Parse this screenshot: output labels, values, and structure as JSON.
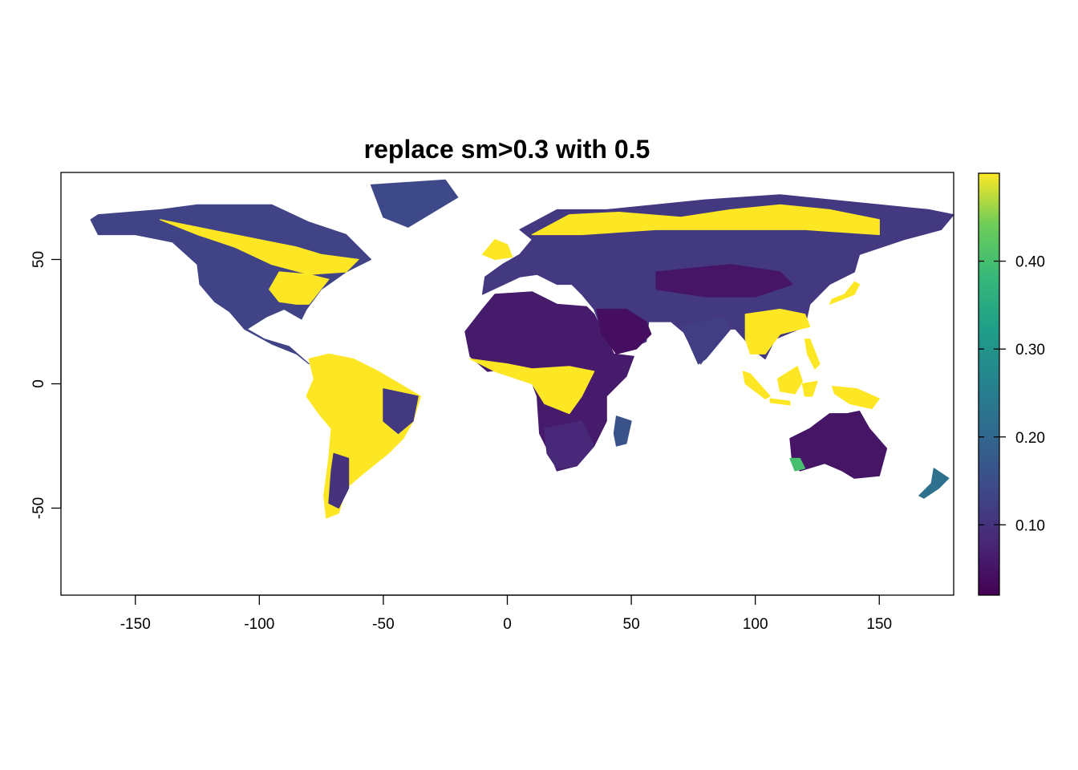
{
  "title": "replace sm>0.3 with 0.5",
  "colors": {
    "low": "#440154",
    "mid": "#21908c",
    "high": "#fde725",
    "land": "#3b1a6e",
    "frame": "#000000"
  },
  "chart_data": {
    "type": "heatmap",
    "title": "replace sm>0.3 with 0.5",
    "xlabel": "",
    "ylabel": "",
    "xlim": [
      -180,
      180
    ],
    "ylim": [
      -85,
      85
    ],
    "x_ticks": [
      -150,
      -100,
      -50,
      0,
      50,
      100,
      150
    ],
    "x_tick_labels": [
      "-150",
      "-100",
      "-50",
      "0",
      "50",
      "100",
      "150"
    ],
    "y_ticks": [
      50,
      0,
      -50
    ],
    "y_tick_labels": [
      "50",
      "0",
      "-50"
    ],
    "legend": {
      "placement": "right",
      "value_range": [
        0.02,
        0.5
      ],
      "ticks": [
        0.1,
        0.2,
        0.3,
        0.4
      ],
      "tick_labels": [
        "0.10",
        "0.20",
        "0.30",
        "0.40"
      ]
    },
    "regions": [
      {
        "name": "North America",
        "pts": [
          [
            -165,
            68
          ],
          [
            -140,
            70
          ],
          [
            -125,
            72
          ],
          [
            -95,
            72
          ],
          [
            -80,
            65
          ],
          [
            -65,
            60
          ],
          [
            -55,
            50
          ],
          [
            -65,
            45
          ],
          [
            -75,
            38
          ],
          [
            -81,
            30
          ],
          [
            -83,
            26
          ],
          [
            -90,
            30
          ],
          [
            -97,
            27
          ],
          [
            -105,
            22
          ],
          [
            -98,
            18
          ],
          [
            -88,
            15
          ],
          [
            -80,
            8
          ],
          [
            -85,
            12
          ],
          [
            -95,
            16
          ],
          [
            -106,
            22
          ],
          [
            -112,
            29
          ],
          [
            -118,
            33
          ],
          [
            -124,
            40
          ],
          [
            -125,
            48
          ],
          [
            -135,
            57
          ],
          [
            -150,
            60
          ],
          [
            -165,
            60
          ],
          [
            -168,
            66
          ]
        ],
        "level": 0.13
      },
      {
        "name": "Canada boreal wet",
        "pts": [
          [
            -140,
            66
          ],
          [
            -120,
            62
          ],
          [
            -100,
            58
          ],
          [
            -85,
            55
          ],
          [
            -75,
            52
          ],
          [
            -60,
            50
          ],
          [
            -65,
            45
          ],
          [
            -80,
            44
          ],
          [
            -95,
            48
          ],
          [
            -110,
            55
          ],
          [
            -125,
            60
          ]
        ],
        "level": 0.5
      },
      {
        "name": "Eastern US wet",
        "pts": [
          [
            -92,
            45
          ],
          [
            -80,
            44
          ],
          [
            -72,
            42
          ],
          [
            -76,
            37
          ],
          [
            -80,
            32
          ],
          [
            -85,
            32
          ],
          [
            -92,
            33
          ],
          [
            -96,
            38
          ]
        ],
        "level": 0.5
      },
      {
        "name": "Greenland edge",
        "pts": [
          [
            -55,
            80
          ],
          [
            -25,
            82
          ],
          [
            -20,
            75
          ],
          [
            -40,
            63
          ],
          [
            -50,
            67
          ]
        ],
        "level": 0.14
      },
      {
        "name": "South America",
        "pts": [
          [
            -80,
            10
          ],
          [
            -72,
            12
          ],
          [
            -62,
            10
          ],
          [
            -52,
            5
          ],
          [
            -35,
            -5
          ],
          [
            -38,
            -15
          ],
          [
            -42,
            -22
          ],
          [
            -48,
            -28
          ],
          [
            -58,
            -36
          ],
          [
            -65,
            -42
          ],
          [
            -68,
            -52
          ],
          [
            -73,
            -54
          ],
          [
            -74,
            -45
          ],
          [
            -72,
            -30
          ],
          [
            -71,
            -18
          ],
          [
            -76,
            -12
          ],
          [
            -81,
            -5
          ],
          [
            -78,
            2
          ]
        ],
        "level": 0.5
      },
      {
        "name": "NE Brazil dry",
        "pts": [
          [
            -50,
            -2
          ],
          [
            -36,
            -5
          ],
          [
            -38,
            -15
          ],
          [
            -44,
            -20
          ],
          [
            -50,
            -15
          ]
        ],
        "level": 0.11
      },
      {
        "name": "Patagonia dry",
        "pts": [
          [
            -70,
            -28
          ],
          [
            -64,
            -30
          ],
          [
            -64,
            -42
          ],
          [
            -68,
            -50
          ],
          [
            -72,
            -48
          ],
          [
            -71,
            -35
          ]
        ],
        "level": 0.1
      },
      {
        "name": "Africa",
        "pts": [
          [
            -17,
            21
          ],
          [
            -10,
            30
          ],
          [
            -5,
            36
          ],
          [
            10,
            37
          ],
          [
            20,
            32
          ],
          [
            32,
            31
          ],
          [
            35,
            28
          ],
          [
            43,
            12
          ],
          [
            51,
            11
          ],
          [
            48,
            3
          ],
          [
            40,
            -5
          ],
          [
            40,
            -15
          ],
          [
            35,
            -25
          ],
          [
            28,
            -33
          ],
          [
            20,
            -35
          ],
          [
            18,
            -30
          ],
          [
            13,
            -20
          ],
          [
            12,
            -5
          ],
          [
            9,
            3
          ],
          [
            0,
            6
          ],
          [
            -8,
            5
          ],
          [
            -15,
            11
          ]
        ],
        "level": 0.06
      },
      {
        "name": "Central Africa wet",
        "pts": [
          [
            -15,
            10
          ],
          [
            0,
            8
          ],
          [
            10,
            6
          ],
          [
            25,
            7
          ],
          [
            35,
            5
          ],
          [
            30,
            -5
          ],
          [
            25,
            -12
          ],
          [
            15,
            -8
          ],
          [
            10,
            0
          ],
          [
            -5,
            5
          ]
        ],
        "level": 0.5
      },
      {
        "name": "Southern Africa",
        "pts": [
          [
            15,
            -18
          ],
          [
            30,
            -15
          ],
          [
            35,
            -25
          ],
          [
            28,
            -33
          ],
          [
            20,
            -34
          ],
          [
            16,
            -28
          ]
        ],
        "level": 0.08
      },
      {
        "name": "Madagascar",
        "pts": [
          [
            44,
            -13
          ],
          [
            50,
            -15
          ],
          [
            48,
            -24
          ],
          [
            44,
            -25
          ],
          [
            43,
            -20
          ]
        ],
        "level": 0.16
      },
      {
        "name": "Eurasia",
        "pts": [
          [
            -10,
            36
          ],
          [
            -9,
            43
          ],
          [
            -2,
            48
          ],
          [
            5,
            52
          ],
          [
            10,
            58
          ],
          [
            5,
            62
          ],
          [
            20,
            70
          ],
          [
            40,
            70
          ],
          [
            60,
            72
          ],
          [
            80,
            74
          ],
          [
            110,
            76
          ],
          [
            140,
            73
          ],
          [
            170,
            70
          ],
          [
            180,
            68
          ],
          [
            175,
            62
          ],
          [
            160,
            58
          ],
          [
            142,
            52
          ],
          [
            140,
            45
          ],
          [
            130,
            40
          ],
          [
            122,
            32
          ],
          [
            120,
            23
          ],
          [
            108,
            18
          ],
          [
            104,
            10
          ],
          [
            100,
            13
          ],
          [
            92,
            22
          ],
          [
            88,
            22
          ],
          [
            78,
            8
          ],
          [
            72,
            20
          ],
          [
            66,
            25
          ],
          [
            57,
            25
          ],
          [
            56,
            17
          ],
          [
            44,
            12
          ],
          [
            38,
            22
          ],
          [
            35,
            30
          ],
          [
            30,
            36
          ],
          [
            26,
            40
          ],
          [
            20,
            40
          ],
          [
            12,
            44
          ],
          [
            5,
            43
          ]
        ],
        "level": 0.11
      },
      {
        "name": "Scandinavia Siberia wet",
        "pts": [
          [
            10,
            60
          ],
          [
            25,
            68
          ],
          [
            45,
            69
          ],
          [
            70,
            67
          ],
          [
            90,
            70
          ],
          [
            110,
            72
          ],
          [
            130,
            70
          ],
          [
            150,
            66
          ],
          [
            150,
            60
          ],
          [
            120,
            62
          ],
          [
            90,
            62
          ],
          [
            60,
            62
          ],
          [
            30,
            60
          ]
        ],
        "level": 0.5
      },
      {
        "name": "SE Asia wet",
        "pts": [
          [
            96,
            28
          ],
          [
            110,
            30
          ],
          [
            120,
            28
          ],
          [
            122,
            23
          ],
          [
            110,
            20
          ],
          [
            104,
            12
          ],
          [
            98,
            12
          ],
          [
            96,
            18
          ]
        ],
        "level": 0.5
      },
      {
        "name": "India",
        "pts": [
          [
            70,
            23
          ],
          [
            88,
            27
          ],
          [
            90,
            22
          ],
          [
            80,
            10
          ],
          [
            77,
            8
          ],
          [
            73,
            17
          ]
        ],
        "level": 0.12
      },
      {
        "name": "Arabia",
        "pts": [
          [
            36,
            30
          ],
          [
            48,
            30
          ],
          [
            56,
            25
          ],
          [
            58,
            20
          ],
          [
            52,
            14
          ],
          [
            44,
            12
          ],
          [
            38,
            20
          ]
        ],
        "level": 0.04
      },
      {
        "name": "Central Asia dry",
        "pts": [
          [
            60,
            45
          ],
          [
            90,
            48
          ],
          [
            110,
            45
          ],
          [
            115,
            40
          ],
          [
            100,
            35
          ],
          [
            80,
            35
          ],
          [
            60,
            38
          ]
        ],
        "level": 0.05
      },
      {
        "name": "Borneo",
        "pts": [
          [
            109,
            2
          ],
          [
            117,
            7
          ],
          [
            119,
            1
          ],
          [
            116,
            -4
          ],
          [
            110,
            -3
          ]
        ],
        "level": 0.5
      },
      {
        "name": "Sumatra",
        "pts": [
          [
            95,
            5
          ],
          [
            98,
            4
          ],
          [
            106,
            -5
          ],
          [
            104,
            -6
          ],
          [
            96,
            0
          ]
        ],
        "level": 0.5
      },
      {
        "name": "Sulawesi",
        "pts": [
          [
            119,
            0
          ],
          [
            125,
            1
          ],
          [
            123,
            -5
          ],
          [
            120,
            -5
          ]
        ],
        "level": 0.5
      },
      {
        "name": "New Guinea",
        "pts": [
          [
            131,
            -1
          ],
          [
            141,
            -2
          ],
          [
            150,
            -6
          ],
          [
            147,
            -10
          ],
          [
            138,
            -8
          ],
          [
            132,
            -4
          ]
        ],
        "level": 0.5
      },
      {
        "name": "Philippines",
        "pts": [
          [
            120,
            18
          ],
          [
            122,
            18
          ],
          [
            126,
            8
          ],
          [
            124,
            6
          ],
          [
            121,
            12
          ]
        ],
        "level": 0.5
      },
      {
        "name": "Japan",
        "pts": [
          [
            130,
            32
          ],
          [
            135,
            34
          ],
          [
            140,
            36
          ],
          [
            142,
            40
          ],
          [
            140,
            41
          ],
          [
            136,
            36
          ],
          [
            131,
            34
          ]
        ],
        "level": 0.5
      },
      {
        "name": "Java",
        "pts": [
          [
            106,
            -6
          ],
          [
            114,
            -7
          ],
          [
            114,
            -8.5
          ],
          [
            106,
            -7.5
          ]
        ],
        "level": 0.5
      },
      {
        "name": "Australia",
        "pts": [
          [
            114,
            -22
          ],
          [
            122,
            -18
          ],
          [
            130,
            -12
          ],
          [
            137,
            -12
          ],
          [
            142,
            -11
          ],
          [
            146,
            -18
          ],
          [
            153,
            -26
          ],
          [
            150,
            -37
          ],
          [
            140,
            -38
          ],
          [
            135,
            -35
          ],
          [
            128,
            -32
          ],
          [
            118,
            -35
          ],
          [
            115,
            -32
          ]
        ],
        "level": 0.05
      },
      {
        "name": "SW Australia wet",
        "pts": [
          [
            114,
            -30
          ],
          [
            118,
            -30
          ],
          [
            120,
            -34
          ],
          [
            116,
            -35
          ]
        ],
        "level": 0.4
      },
      {
        "name": "New Zealand",
        "pts": [
          [
            172,
            -34
          ],
          [
            178,
            -38
          ],
          [
            174,
            -42
          ],
          [
            168,
            -46
          ],
          [
            166,
            -45
          ],
          [
            171,
            -40
          ]
        ],
        "level": 0.22
      },
      {
        "name": "British Isles",
        "pts": [
          [
            -10,
            52
          ],
          [
            -5,
            58
          ],
          [
            0,
            56
          ],
          [
            2,
            51
          ],
          [
            -5,
            50
          ]
        ],
        "level": 0.5
      }
    ]
  }
}
